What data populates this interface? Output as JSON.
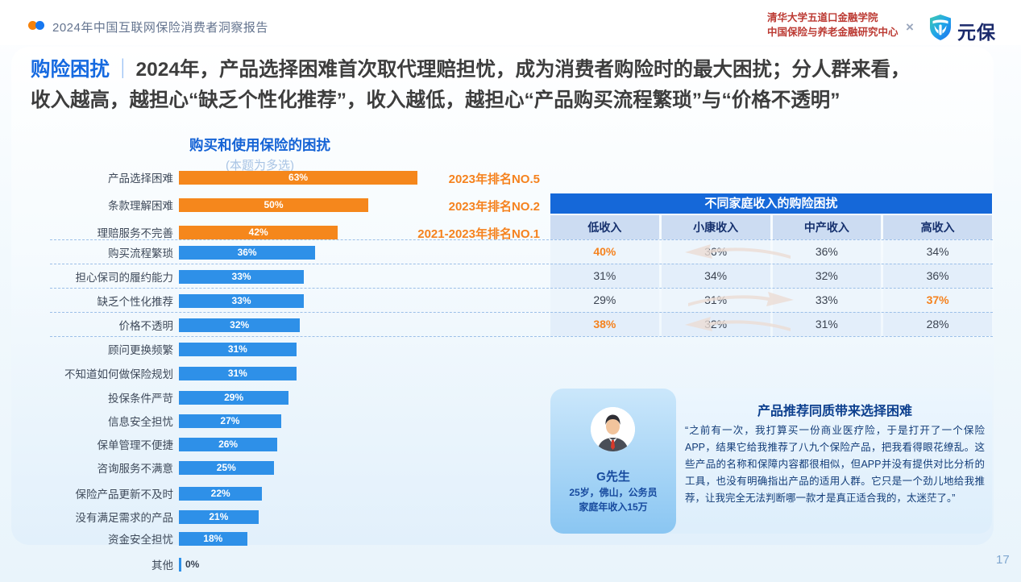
{
  "colors": {
    "accent_orange": "#F5821E",
    "bar_blue": "#2E90E8",
    "table_header_blue": "#1568D9",
    "headline_blue": "#1569E0",
    "institution_red": "#BC3A33",
    "brand_navy": "#1B2A6B"
  },
  "header": {
    "report_title": "2024年中国互联网保险消费者洞察报告",
    "institution_line1": "清华大学五道口金融学院",
    "institution_line2": "中国保险与养老金融研究中心",
    "collab_symbol": "×",
    "brand_name": "元保"
  },
  "headline": {
    "tag": "购险困扰",
    "separator": "｜",
    "line1": "2024年，产品选择困难首次取代理赔担忧，成为消费者购险时的最大困扰；分人群来看，",
    "line2": "收入越高，越担心“缺乏个性化推荐”，收入越低，越担心“产品购买流程繁琐”与“价格不透明”"
  },
  "chart_data": {
    "type": "bar",
    "orientation": "horizontal",
    "title": "购买和使用保险的困扰",
    "subtitle": "(本题为多选)",
    "unit": "%",
    "xlim": [
      0,
      100
    ],
    "categories": [
      "产品选择困难",
      "条款理解困难",
      "理赔服务不完善",
      "购买流程繁琐",
      "担心保司的履约能力",
      "缺乏个性化推荐",
      "价格不透明",
      "顾问更换频繁",
      "不知道如何做保险规划",
      "投保条件严苛",
      "信息安全担忧",
      "保单管理不便捷",
      "咨询服务不满意",
      "保险产品更新不及时",
      "没有满足需求的产品",
      "资金安全担忧",
      "其他"
    ],
    "values": [
      63,
      50,
      42,
      36,
      33,
      33,
      32,
      31,
      31,
      29,
      27,
      26,
      25,
      22,
      21,
      18,
      0
    ],
    "highlight_top3_color": "#F5871C",
    "default_color": "#2E90E8",
    "annotations": [
      {
        "category": "产品选择困难",
        "label": "2023年排名NO.5"
      },
      {
        "category": "条款理解困难",
        "label": "2023年排名NO.2"
      },
      {
        "category": "理赔服务不完善",
        "label": "2021-2023年排名NO.1"
      }
    ]
  },
  "income_table": {
    "title": "不同家庭收入的购险困扰",
    "columns": [
      "低收入",
      "小康收入",
      "中产收入",
      "高收入"
    ],
    "rows": [
      {
        "category": "购买流程繁琐",
        "values": [
          "40%",
          "36%",
          "36%",
          "34%"
        ],
        "highlight": [
          0
        ],
        "arrow": "left"
      },
      {
        "category": "担心保司的履约能力",
        "values": [
          "31%",
          "34%",
          "32%",
          "36%"
        ],
        "highlight": [],
        "arrow": ""
      },
      {
        "category": "缺乏个性化推荐",
        "values": [
          "29%",
          "31%",
          "33%",
          "37%"
        ],
        "highlight": [
          3
        ],
        "arrow": "right"
      },
      {
        "category": "价格不透明",
        "values": [
          "38%",
          "32%",
          "31%",
          "28%"
        ],
        "highlight": [
          0
        ],
        "arrow": "left"
      }
    ]
  },
  "quote_card": {
    "title": "产品推荐同质带来选择困难",
    "person_name": "G先生",
    "person_detail1": "25岁，佛山，公务员",
    "person_detail2": "家庭年收入15万",
    "quote": "“之前有一次，我打算买一份商业医疗险，于是打开了一个保险APP，结果它给我推荐了八九个保险产品，把我看得眼花缭乱。这些产品的名称和保障内容都很相似，但APP并没有提供对比分析的工具，也没有明确指出产品的适用人群。它只是一个劲儿地给我推荐，让我完全无法判断哪一款才是真正适合我的，太迷茫了。”"
  },
  "page": {
    "number": "17"
  }
}
